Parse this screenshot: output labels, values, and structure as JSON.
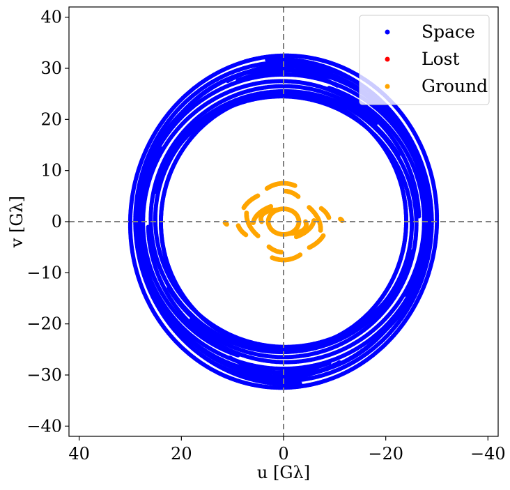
{
  "chart_data": {
    "type": "scatter",
    "xlabel": "u [Gλ]",
    "ylabel": "v [Gλ]",
    "xlim": [
      42,
      -42
    ],
    "ylim": [
      -42,
      42
    ],
    "x_ticks": [
      40,
      20,
      0,
      -20,
      -40
    ],
    "x_tick_labels": [
      "40",
      "20",
      "0",
      "−20",
      "−40"
    ],
    "y_ticks": [
      40,
      30,
      20,
      10,
      0,
      -10,
      -20,
      -30,
      -40
    ],
    "y_tick_labels": [
      "40",
      "30",
      "20",
      "10",
      "0",
      "−10",
      "−20",
      "−30",
      "−40"
    ],
    "reference_lines": {
      "x": 0,
      "y": 0,
      "style": "dashed",
      "color": "#808080"
    },
    "legend": {
      "position": "top-right"
    },
    "series": [
      {
        "name": "Space",
        "color": "#0000ff",
        "arcs": [
          {
            "cx": 0,
            "cy": 0,
            "a": 30,
            "b": 32.5,
            "tilt": 5,
            "t0": 250,
            "t1": 470
          },
          {
            "cx": 0.5,
            "cy": 0.3,
            "a": 29.5,
            "b": 31.5,
            "tilt": -5,
            "t0": 90,
            "t1": 300
          },
          {
            "cx": -0.3,
            "cy": -0.4,
            "a": 28,
            "b": 30,
            "tilt": 10,
            "t0": 60,
            "t1": 380
          },
          {
            "cx": 0.2,
            "cy": 0.2,
            "a": 28.5,
            "b": 29,
            "tilt": -12,
            "t0": 140,
            "t1": 420
          },
          {
            "cx": -0.5,
            "cy": 0,
            "a": 27,
            "b": 27.5,
            "tilt": 8,
            "t0": 100,
            "t1": 350
          },
          {
            "cx": 0,
            "cy": 0.5,
            "a": 26,
            "b": 26,
            "tilt": -6,
            "t0": 200,
            "t1": 500
          },
          {
            "cx": 0.4,
            "cy": -0.5,
            "a": 25.5,
            "b": 25,
            "tilt": 0,
            "t0": 20,
            "t1": 330
          },
          {
            "cx": 0,
            "cy": 0,
            "a": 24,
            "b": 25,
            "tilt": 4,
            "t0": 120,
            "t1": 400
          },
          {
            "cx": 0,
            "cy": 0,
            "a": 27.5,
            "b": 31,
            "tilt": 15,
            "t0": 230,
            "t1": 300
          },
          {
            "cx": 0,
            "cy": 0,
            "a": 26.5,
            "b": 30,
            "tilt": -15,
            "t0": 50,
            "t1": 130
          }
        ]
      },
      {
        "name": "Lost",
        "color": "#ff0000",
        "arcs": []
      },
      {
        "name": "Ground",
        "color": "#ffa500",
        "arcs": [
          {
            "cx": 0,
            "cy": 0,
            "a": 3,
            "b": 2.5,
            "tilt": 0,
            "t0": 0,
            "t1": 360
          },
          {
            "cx": 0,
            "cy": 0,
            "a": 4.5,
            "b": 2.2,
            "tilt": 10,
            "t0": 160,
            "t1": 250
          },
          {
            "cx": 0,
            "cy": 0,
            "a": 4.5,
            "b": 2.2,
            "tilt": 10,
            "t0": 340,
            "t1": 430
          },
          {
            "cx": 0,
            "cy": 0,
            "a": 6,
            "b": 3.5,
            "tilt": -8,
            "t0": 10,
            "t1": 70
          },
          {
            "cx": 0,
            "cy": 0,
            "a": 6,
            "b": 3.5,
            "tilt": -8,
            "t0": 190,
            "t1": 250
          },
          {
            "cx": 0,
            "cy": 0,
            "a": 7.5,
            "b": 5,
            "tilt": 20,
            "t0": 120,
            "t1": 170
          },
          {
            "cx": 0,
            "cy": 0,
            "a": 7.5,
            "b": 5,
            "tilt": 20,
            "t0": 300,
            "t1": 350
          },
          {
            "cx": 0,
            "cy": 0,
            "a": 6.5,
            "b": 7.5,
            "tilt": 0,
            "t0": 60,
            "t1": 110
          },
          {
            "cx": 0,
            "cy": 0,
            "a": 6.5,
            "b": 7.5,
            "tilt": 0,
            "t0": 240,
            "t1": 290
          },
          {
            "cx": 0,
            "cy": 0,
            "a": 8.5,
            "b": 6,
            "tilt": 5,
            "t0": 20,
            "t1": 50
          },
          {
            "cx": 0,
            "cy": 0,
            "a": 8.5,
            "b": 6,
            "tilt": 5,
            "t0": 200,
            "t1": 230
          },
          {
            "cx": 0,
            "cy": 0,
            "a": 9,
            "b": 4.5,
            "tilt": 0,
            "t0": 145,
            "t1": 170
          },
          {
            "cx": 0,
            "cy": 0,
            "a": 9,
            "b": 4.5,
            "tilt": 0,
            "t0": 325,
            "t1": 350
          },
          {
            "cx": 0,
            "cy": 0,
            "a": 11.5,
            "b": 2,
            "tilt": 0,
            "t0": 165,
            "t1": 175
          },
          {
            "cx": 0,
            "cy": 0,
            "a": 11.5,
            "b": 2,
            "tilt": 0,
            "t0": 345,
            "t1": 355
          },
          {
            "cx": 0,
            "cy": 0,
            "a": 5,
            "b": 6,
            "tilt": 0,
            "t0": 95,
            "t1": 125
          },
          {
            "cx": 0,
            "cy": 0,
            "a": 5,
            "b": 6,
            "tilt": 0,
            "t0": 275,
            "t1": 305
          }
        ]
      }
    ]
  }
}
